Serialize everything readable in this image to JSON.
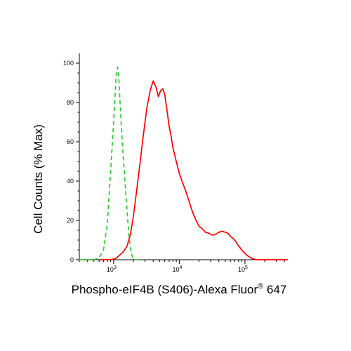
{
  "chart_data": {
    "type": "line",
    "ylabel": "Cell Counts (% Max)",
    "xlabel": "Phospho-eIF4B (S406)-Alexa Fluor",
    "xlabel_superscript": "®",
    "xlabel_suffix": " 647",
    "x_scale": "log",
    "xlim": [
      300,
      450000
    ],
    "ylim": [
      0,
      105
    ],
    "y_ticks": [
      "0",
      "20",
      "40",
      "60",
      "80",
      "100"
    ],
    "x_tick_labels": [
      {
        "base": "10",
        "exp": "3"
      },
      {
        "base": "10",
        "exp": "4"
      },
      {
        "base": "10",
        "exp": "5"
      }
    ],
    "grid": false,
    "series": [
      {
        "color": "#ff0000",
        "dash": "solid",
        "x": [
          600,
          900,
          1050,
          1200,
          1400,
          1600,
          1800,
          2000,
          2200,
          2500,
          2800,
          3200,
          3600,
          4000,
          4400,
          4800,
          5200,
          5600,
          6000,
          6500,
          7000,
          7500,
          8000,
          9000,
          10000,
          11000,
          12500,
          14000,
          16000,
          18000,
          20000,
          22000,
          25000,
          28000,
          32000,
          36000,
          40000,
          45000,
          50000,
          55000,
          60000,
          70000,
          80000,
          95000,
          110000,
          130000,
          150000,
          200000,
          300000,
          450000
        ],
        "y": [
          0,
          0,
          0.5,
          2,
          4,
          7,
          13,
          22,
          33,
          48,
          62,
          77,
          86,
          91,
          88,
          83,
          86,
          87,
          84,
          76,
          68,
          63,
          57,
          50,
          44,
          40,
          35,
          30,
          24,
          20,
          17,
          16,
          14,
          13.5,
          12.5,
          13,
          14,
          14.5,
          14,
          13.5,
          12,
          10,
          7,
          4,
          2,
          0.5,
          0,
          0,
          0,
          0
        ]
      },
      {
        "color": "#33cc33",
        "dash": "dashed",
        "x": [
          300,
          500,
          600,
          700,
          800,
          900,
          950,
          1000,
          1050,
          1100,
          1150,
          1200,
          1250,
          1300,
          1400,
          1500,
          1600,
          1700,
          1800,
          1900,
          2000,
          2200,
          2500
        ],
        "y": [
          0,
          0,
          1,
          5,
          18,
          45,
          58,
          70,
          84,
          95,
          98,
          92,
          80,
          70,
          52,
          38,
          25,
          13,
          6,
          2,
          0.5,
          0,
          0
        ]
      }
    ]
  }
}
